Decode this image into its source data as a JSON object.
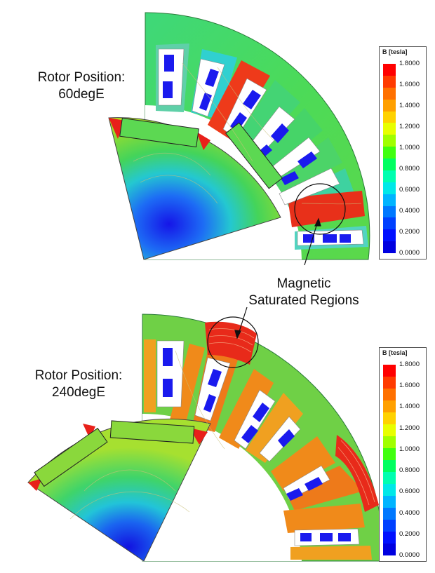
{
  "panels": [
    {
      "id": "top",
      "rotor_position_line1": "Rotor Position:",
      "rotor_position_line2": "60degE"
    },
    {
      "id": "bottom",
      "rotor_position_line1": "Rotor Position:",
      "rotor_position_line2": "240degE"
    }
  ],
  "annotation": {
    "line1": "Magnetic",
    "line2": "Saturated Regions"
  },
  "legend": {
    "title": "B [tesla]",
    "ticks": [
      "1.8000",
      "1.6000",
      "1.4000",
      "1.2000",
      "1.0000",
      "0.8000",
      "0.6000",
      "0.4000",
      "0.2000",
      "0.0000"
    ],
    "colors": [
      "#ff0000",
      "#ff3a00",
      "#ff7000",
      "#ffa000",
      "#ffd200",
      "#e8ff00",
      "#a0ff00",
      "#40ff10",
      "#00ff60",
      "#00ffb0",
      "#00e8e8",
      "#00b4ff",
      "#0078ff",
      "#0040ff",
      "#0010ff",
      "#0000e0"
    ]
  },
  "colors": {
    "red": "#e8201a",
    "orange": "#f08a1a",
    "green": "#3cd04a",
    "cyan": "#33d9d9",
    "blue": "#1a1aee"
  }
}
